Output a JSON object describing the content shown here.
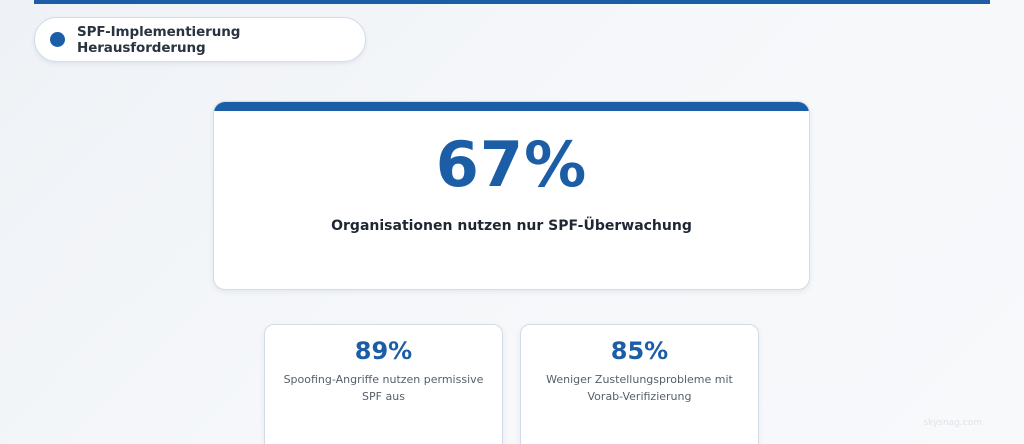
{
  "section": {
    "title": "SPF-Implementierung Herausforderung",
    "dot_icon": "bullet-dot-icon"
  },
  "hero": {
    "value": "67%",
    "label": "Organisationen nutzen nur SPF-Überwachung"
  },
  "stats": [
    {
      "value": "89%",
      "label": "Spoofing-Angriffe nutzen permissive SPF aus"
    },
    {
      "value": "85%",
      "label": "Weniger Zustellungsprobleme mit Vorab-Verifizierung"
    }
  ],
  "watermark": "skysnag.com",
  "colors": {
    "accent": "#1b5ea6",
    "text_dark": "#1f2733",
    "text_muted": "#555f6b",
    "card_border": "#d3dbe5"
  }
}
